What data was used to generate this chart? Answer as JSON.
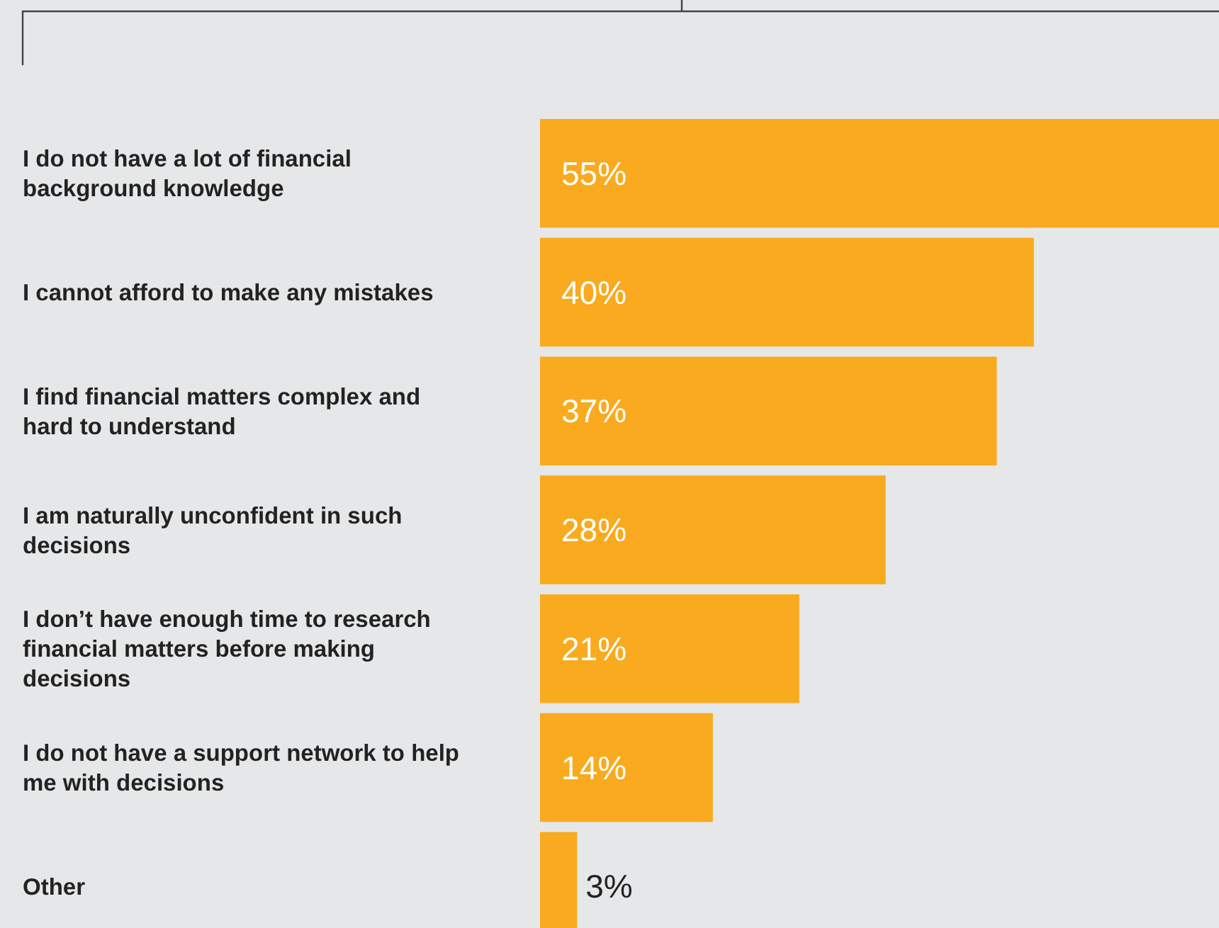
{
  "chart_data": {
    "type": "bar",
    "orientation": "horizontal",
    "categories": [
      "I do not have a lot of financial background knowledge",
      "I cannot afford to make any mistakes",
      "I find financial matters complex and hard to understand",
      "I am naturally unconfident in such decisions",
      "I don’t have enough time to research financial matters before making decisions",
      "I do not have a support network to help me with decisions",
      "Other"
    ],
    "values": [
      55,
      40,
      37,
      28,
      21,
      14,
      3
    ],
    "value_labels": [
      "55%",
      "40%",
      "37%",
      "28%",
      "21%",
      "14%",
      "3%"
    ],
    "color": "#f9aa1e",
    "tick_labels": "y"
  }
}
